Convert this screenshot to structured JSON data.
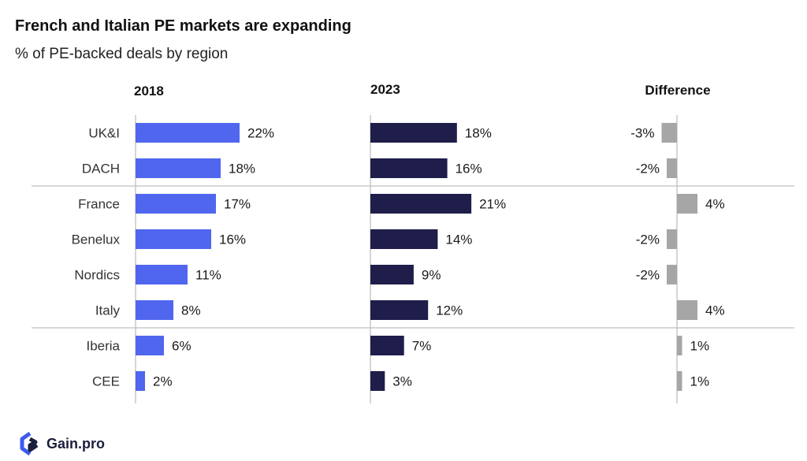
{
  "title": "French and Italian PE markets are expanding",
  "subtitle": "% of PE-backed deals by region",
  "logo_text": "Gain.pro",
  "colors": {
    "y2018": "#5166ee",
    "y2023": "#1f1d4a",
    "diff": "#a6a6a6",
    "axis": "#bfbfbf",
    "text": "#1a1a1a",
    "label": "#333333"
  },
  "chart_data": {
    "type": "bar",
    "orientation": "horizontal",
    "categories": [
      "UK&I",
      "DACH",
      "France",
      "Benelux",
      "Nordics",
      "Italy",
      "Iberia",
      "CEE"
    ],
    "series": [
      {
        "name": "2018",
        "values": [
          22,
          18,
          17,
          16,
          11,
          8,
          6,
          2
        ],
        "labels": [
          "22%",
          "18%",
          "17%",
          "16%",
          "11%",
          "8%",
          "6%",
          "2%"
        ]
      },
      {
        "name": "2023",
        "values": [
          18,
          16,
          21,
          14,
          9,
          12,
          7,
          3
        ],
        "labels": [
          "18%",
          "16%",
          "21%",
          "14%",
          "9%",
          "12%",
          "7%",
          "3%"
        ]
      },
      {
        "name": "Difference",
        "values": [
          -3,
          -2,
          4,
          -2,
          -2,
          4,
          1,
          1
        ],
        "labels": [
          "-3%",
          "-2%",
          "4%",
          "-2%",
          "-2%",
          "4%",
          "1%",
          "1%"
        ]
      }
    ],
    "group_separators_after": [
      "DACH",
      "Italy"
    ],
    "grid": false,
    "legend": "none"
  }
}
